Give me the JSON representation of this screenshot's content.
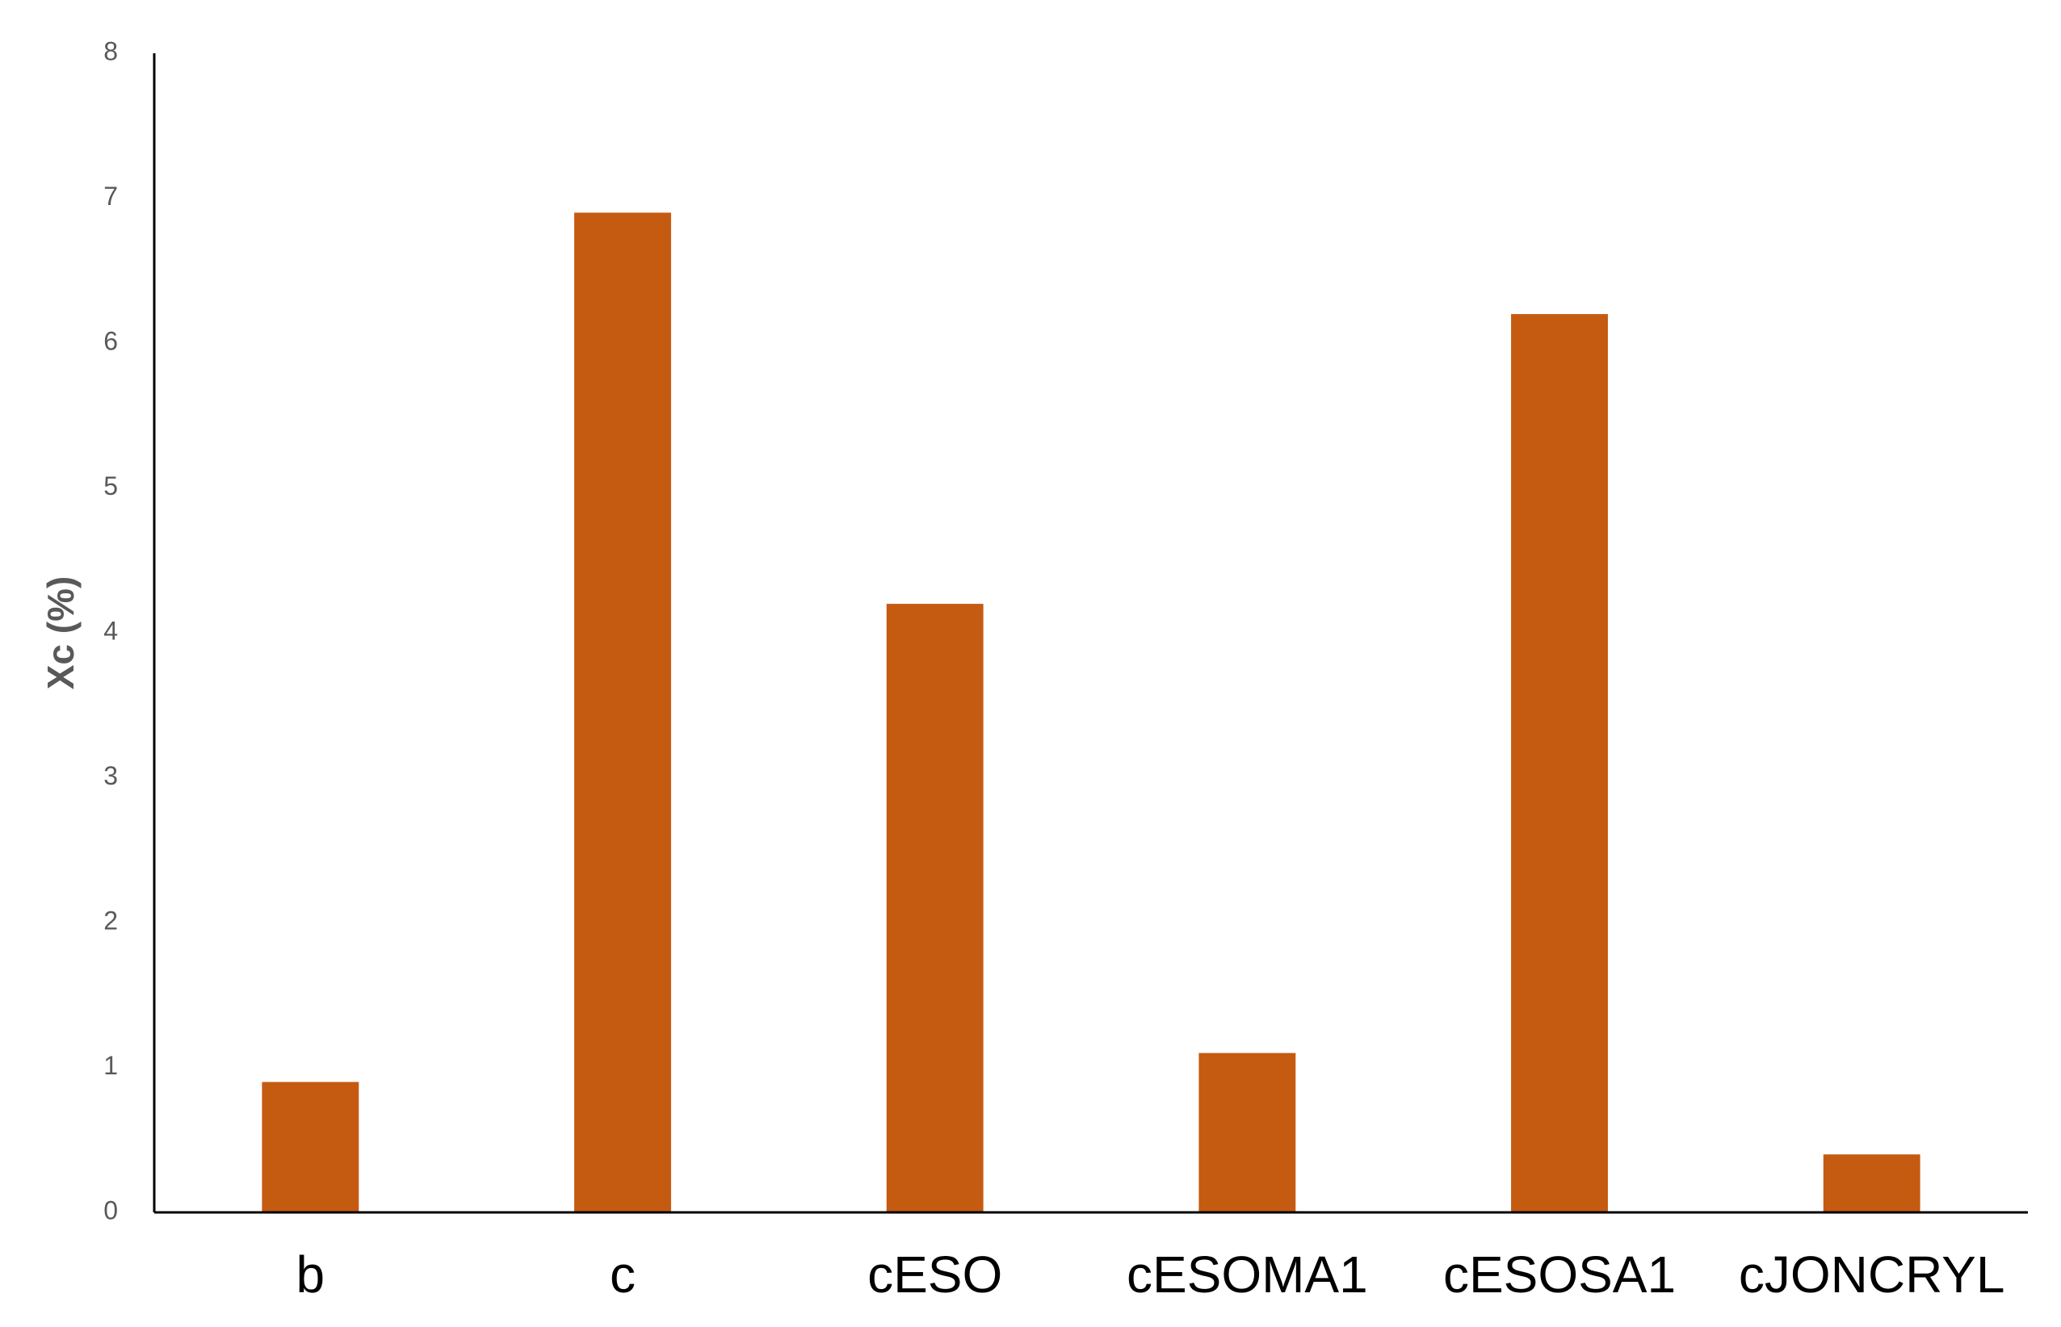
{
  "chart_data": {
    "type": "bar",
    "y_label": "Xc (%)",
    "categories": [
      "b",
      "c",
      "cESO",
      "cESOMA1",
      "cESOSA1",
      "cJONCRYL"
    ],
    "values": [
      0.9,
      6.9,
      4.2,
      1.1,
      6.2,
      0.4
    ],
    "color": "#c55a11",
    "ylim": [
      0,
      8
    ],
    "yticks": [
      0,
      1,
      2,
      3,
      4,
      5,
      6,
      7,
      8
    ],
    "grid": false
  }
}
